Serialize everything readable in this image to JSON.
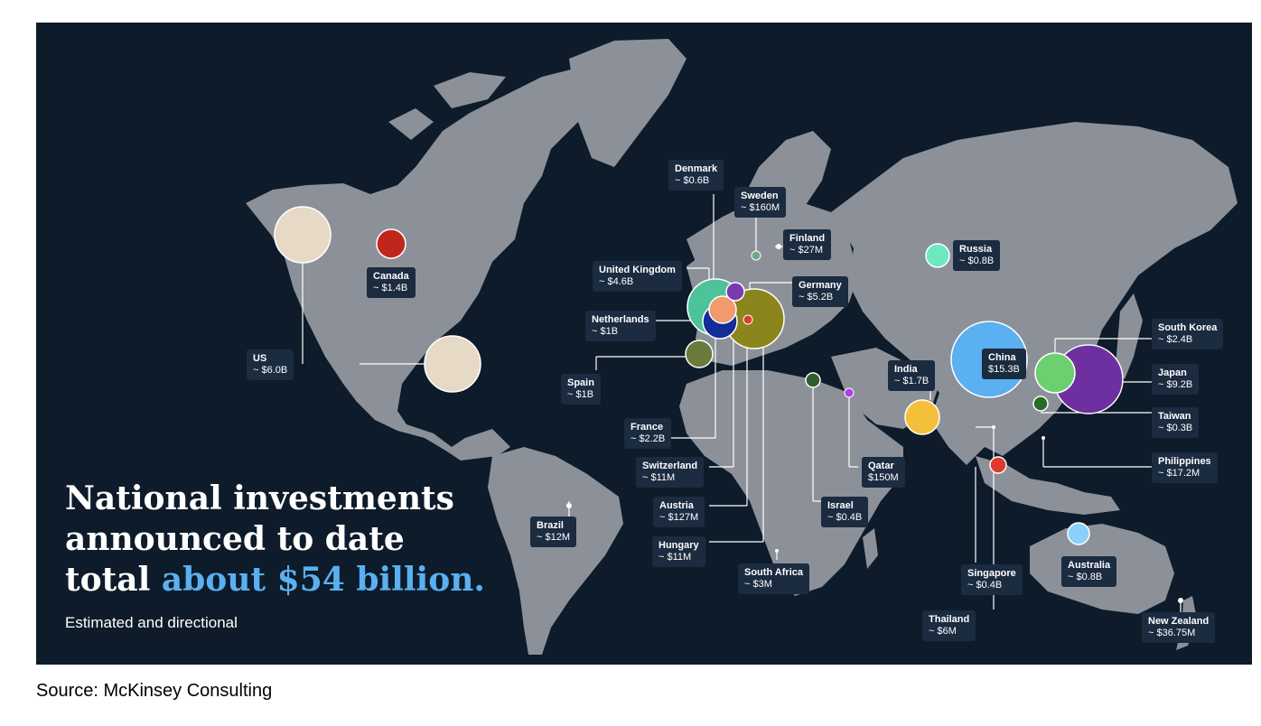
{
  "headline": {
    "line1": "National investments",
    "line2": "announced to date",
    "line3_prefix": "total ",
    "line3_accent": "about $54 billion."
  },
  "subhead": "Estimated and directional",
  "source": "Source: McKinsey Consulting",
  "colors": {
    "background": "#0d1b2a",
    "land": "#8c9199",
    "label_bg": "#1b2b40",
    "accent": "#5ab0f0"
  },
  "countries": [
    {
      "id": "us",
      "name": "US",
      "amount": "~ $6.0B",
      "color": "#e6dac6"
    },
    {
      "id": "canada",
      "name": "Canada",
      "amount": "~ $1.4B",
      "color": "#c0261c"
    },
    {
      "id": "brazil",
      "name": "Brazil",
      "amount": "~ $12M",
      "color": "#ffffff"
    },
    {
      "id": "uk",
      "name": "United Kingdom",
      "amount": "~ $4.6B",
      "color": "#4ec29b"
    },
    {
      "id": "denmark",
      "name": "Denmark",
      "amount": "~ $0.6B",
      "color": "#ffffff"
    },
    {
      "id": "sweden",
      "name": "Sweden",
      "amount": "~ $160M",
      "color": "#6fa78a"
    },
    {
      "id": "finland",
      "name": "Finland",
      "amount": "~ $27M",
      "color": "#ffffff"
    },
    {
      "id": "germany",
      "name": "Germany",
      "amount": "~ $5.2B",
      "color": "#8a861c"
    },
    {
      "id": "netherlands",
      "name": "Netherlands",
      "amount": "~ $1B",
      "color": "#142c9a"
    },
    {
      "id": "spain",
      "name": "Spain",
      "amount": "~ $1B",
      "color": "#6a7a3a"
    },
    {
      "id": "france",
      "name": "France",
      "amount": "~ $2.2B",
      "color": "#f09a6e"
    },
    {
      "id": "switzerland",
      "name": "Switzerland",
      "amount": "~ $11M",
      "color": "#ffffff"
    },
    {
      "id": "austria",
      "name": "Austria",
      "amount": "~ $127M",
      "color": "#e03a2c"
    },
    {
      "id": "hungary",
      "name": "Hungary",
      "amount": "~ $11M",
      "color": "#ffffff"
    },
    {
      "id": "south-africa",
      "name": "South Africa",
      "amount": "~ $3M",
      "color": "#ffffff"
    },
    {
      "id": "israel",
      "name": "Israel",
      "amount": "~ $0.4B",
      "color": "#2e5e2e"
    },
    {
      "id": "qatar",
      "name": "Qatar",
      "amount": "$150M",
      "color": "#b040e0"
    },
    {
      "id": "russia",
      "name": "Russia",
      "amount": "~ $0.8B",
      "color": "#6ee8c0"
    },
    {
      "id": "india",
      "name": "India",
      "amount": "~ $1.7B",
      "color": "#f4c03a"
    },
    {
      "id": "china",
      "name": "China",
      "amount": "$15.3B",
      "color": "#5ab0f0"
    },
    {
      "id": "south-korea",
      "name": "South Korea",
      "amount": "~ $2.4B",
      "color": "#6cd070"
    },
    {
      "id": "japan",
      "name": "Japan",
      "amount": "~ $9.2B",
      "color": "#6e30a0"
    },
    {
      "id": "taiwan",
      "name": "Taiwan",
      "amount": "~ $0.3B",
      "color": "#2a6a2a"
    },
    {
      "id": "philippines",
      "name": "Philippines",
      "amount": "~ $17.2M",
      "color": "#ffffff"
    },
    {
      "id": "thailand",
      "name": "Thailand",
      "amount": "~ $6M",
      "color": "#ffffff"
    },
    {
      "id": "singapore",
      "name": "Singapore",
      "amount": "~ $0.4B",
      "color": "#e03a2c"
    },
    {
      "id": "australia",
      "name": "Australia",
      "amount": "~ $0.8B",
      "color": "#8ccff8"
    },
    {
      "id": "new-zealand",
      "name": "New Zealand",
      "amount": "~ $36.75M",
      "color": "#ffffff"
    }
  ]
}
